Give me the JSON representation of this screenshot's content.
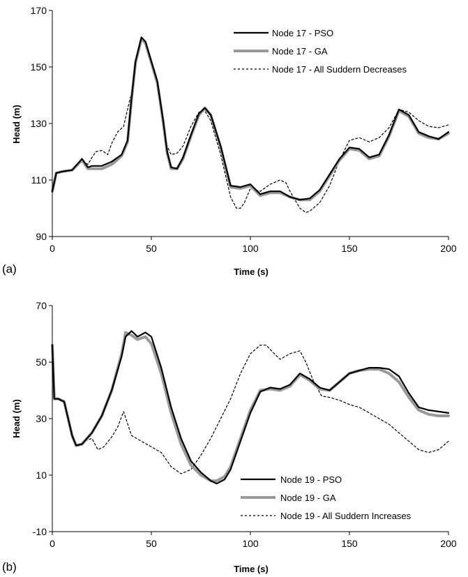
{
  "chart_data": [
    {
      "type": "line",
      "panel_label": "(a)",
      "xlabel": "Time (s)",
      "ylabel": "Head (m)",
      "xlim": [
        0,
        200
      ],
      "ylim": [
        90,
        170
      ],
      "xticks": [
        "0",
        "50",
        "100",
        "150",
        "200"
      ],
      "yticks": [
        "90",
        "110",
        "130",
        "150",
        "170"
      ],
      "grid": false,
      "legend_position": "top-right",
      "series": [
        {
          "name": "Node 17 - PSO",
          "color": "#000000",
          "style": "solid-thin",
          "x": [
            0,
            2,
            5,
            10,
            15,
            18,
            20,
            25,
            30,
            35,
            38,
            40,
            42,
            45,
            47,
            50,
            53,
            56,
            58,
            60,
            63,
            66,
            70,
            74,
            77,
            80,
            85,
            90,
            95,
            100,
            105,
            110,
            115,
            120,
            125,
            130,
            135,
            140,
            145,
            150,
            155,
            160,
            165,
            170,
            175,
            180,
            185,
            190,
            195,
            200
          ],
          "y": [
            106,
            112.5,
            113,
            113.5,
            117.5,
            114.5,
            115,
            115,
            116.5,
            119,
            124,
            139,
            152,
            160.5,
            159,
            152,
            145,
            131,
            120,
            114.5,
            114,
            118,
            126,
            133.5,
            135.5,
            133,
            122,
            108,
            107.5,
            108.5,
            105,
            106,
            106,
            104,
            103,
            103.5,
            106.5,
            112,
            117.5,
            121.5,
            121,
            118,
            119,
            126,
            135,
            133,
            127,
            125.5,
            124.5,
            127
          ]
        },
        {
          "name": "Node 17 - GA",
          "color": "#999999",
          "style": "solid-thick",
          "x": [
            0,
            2,
            5,
            10,
            15,
            18,
            20,
            25,
            30,
            35,
            38,
            40,
            42,
            45,
            47,
            50,
            53,
            56,
            58,
            60,
            63,
            66,
            70,
            74,
            77,
            80,
            85,
            90,
            95,
            100,
            105,
            110,
            115,
            120,
            125,
            130,
            135,
            140,
            145,
            150,
            155,
            160,
            165,
            170,
            175,
            180,
            185,
            190,
            195,
            200
          ],
          "y": [
            106,
            112.5,
            113,
            113.5,
            117,
            114,
            114,
            114,
            115.5,
            118.5,
            123.5,
            138.5,
            151.5,
            160,
            158.5,
            151.5,
            144.5,
            130.5,
            119.5,
            114,
            114,
            117.5,
            125.5,
            133,
            135.5,
            133,
            121.5,
            107.5,
            107,
            108,
            104.5,
            105.5,
            105.5,
            104,
            103,
            103,
            106,
            111.5,
            117,
            121,
            120.5,
            117.5,
            118.5,
            125.5,
            134.5,
            132.5,
            126.5,
            125,
            124.5,
            126.5
          ]
        },
        {
          "name": "Node 17 - All Suddern Decreases",
          "color": "#000000",
          "style": "dotted",
          "x": [
            0,
            2,
            5,
            10,
            15,
            18,
            20,
            22,
            25,
            28,
            30,
            33,
            36,
            40,
            42,
            45,
            47,
            50,
            53,
            56,
            58,
            60,
            63,
            66,
            70,
            74,
            77,
            80,
            85,
            90,
            93,
            95,
            97,
            100,
            105,
            110,
            115,
            118,
            120,
            125,
            128,
            130,
            135,
            140,
            145,
            150,
            155,
            160,
            165,
            170,
            175,
            180,
            185,
            190,
            195,
            200
          ],
          "y": [
            106,
            112.5,
            113,
            113.5,
            117,
            115.5,
            118,
            120,
            120.5,
            119,
            123,
            127,
            129,
            141,
            150,
            159.5,
            158,
            152,
            143,
            128,
            122,
            119,
            119.5,
            122,
            129,
            134,
            134.5,
            131,
            119,
            104,
            100,
            100,
            102,
            107,
            106,
            108.5,
            110,
            109,
            106,
            100,
            98.5,
            99,
            102,
            108,
            117,
            124,
            125,
            123.5,
            125,
            128.5,
            135,
            134,
            131,
            129,
            128.5,
            129.5
          ]
        }
      ]
    },
    {
      "type": "line",
      "panel_label": "(b)",
      "xlabel": "Time (s)",
      "ylabel": "Head (m)",
      "xlim": [
        0,
        200
      ],
      "ylim": [
        -10,
        70
      ],
      "xticks": [
        "0",
        "50",
        "100",
        "150",
        "200"
      ],
      "yticks": [
        "-10",
        "10",
        "30",
        "50",
        "70"
      ],
      "grid": false,
      "legend_position": "bottom-right",
      "series": [
        {
          "name": "Node 19 - PSO",
          "color": "#000000",
          "style": "solid-thin",
          "x": [
            0,
            1,
            3,
            6,
            10,
            12,
            15,
            20,
            25,
            30,
            35,
            37,
            40,
            43,
            47,
            50,
            55,
            60,
            65,
            70,
            75,
            80,
            83,
            87,
            90,
            95,
            100,
            105,
            110,
            115,
            120,
            125,
            130,
            135,
            140,
            145,
            150,
            155,
            160,
            165,
            170,
            175,
            180,
            185,
            190,
            195,
            200
          ],
          "y": [
            56,
            37,
            37,
            36,
            24,
            20.5,
            21,
            25,
            31,
            40,
            52,
            59,
            61,
            59,
            60.5,
            59,
            48,
            34,
            23,
            15,
            11,
            8,
            7,
            8.5,
            12,
            22,
            32,
            39.5,
            41,
            40.5,
            42,
            46,
            44,
            41,
            40,
            43,
            46,
            47,
            48,
            48,
            47.5,
            45,
            39,
            34,
            33,
            32.5,
            32
          ]
        },
        {
          "name": "Node 19 - GA",
          "color": "#999999",
          "style": "solid-thick",
          "x": [
            0,
            1,
            3,
            6,
            10,
            12,
            15,
            20,
            25,
            30,
            35,
            37,
            40,
            43,
            47,
            50,
            55,
            60,
            65,
            70,
            75,
            80,
            83,
            87,
            90,
            95,
            100,
            105,
            110,
            115,
            120,
            125,
            130,
            135,
            140,
            145,
            150,
            155,
            160,
            165,
            170,
            175,
            180,
            185,
            190,
            195,
            200
          ],
          "y": [
            56,
            37,
            37,
            36,
            24,
            20.5,
            21,
            25,
            31,
            40,
            53,
            60.5,
            59.5,
            58,
            59,
            56.5,
            46,
            32,
            21,
            13.5,
            10,
            8,
            8,
            9.5,
            13,
            23,
            33,
            40,
            40.5,
            40,
            41.5,
            45.5,
            43.5,
            40.5,
            40,
            43,
            46,
            47,
            47.5,
            47.5,
            46,
            43,
            37.5,
            33,
            31.5,
            31,
            31
          ]
        },
        {
          "name": "Node 19 - All Suddern Increases",
          "color": "#000000",
          "style": "dotted",
          "x": [
            0,
            1,
            3,
            6,
            10,
            13,
            16,
            20,
            23,
            26,
            30,
            33,
            36,
            40,
            45,
            50,
            55,
            60,
            65,
            70,
            75,
            80,
            85,
            90,
            95,
            100,
            105,
            108,
            112,
            115,
            120,
            125,
            128,
            132,
            136,
            140,
            145,
            150,
            155,
            160,
            165,
            170,
            175,
            180,
            185,
            190,
            195,
            200
          ],
          "y": [
            56,
            37,
            37,
            36,
            24,
            20,
            22,
            23,
            19,
            20,
            23.5,
            27,
            32.5,
            24,
            22,
            20,
            18,
            13,
            10.5,
            12,
            17,
            23,
            30,
            37,
            46,
            53,
            56,
            56,
            53,
            51,
            53,
            54,
            50,
            43,
            38,
            37.5,
            36.5,
            35,
            34,
            32,
            30,
            28,
            25,
            22,
            19,
            18,
            19,
            22
          ]
        }
      ]
    }
  ]
}
